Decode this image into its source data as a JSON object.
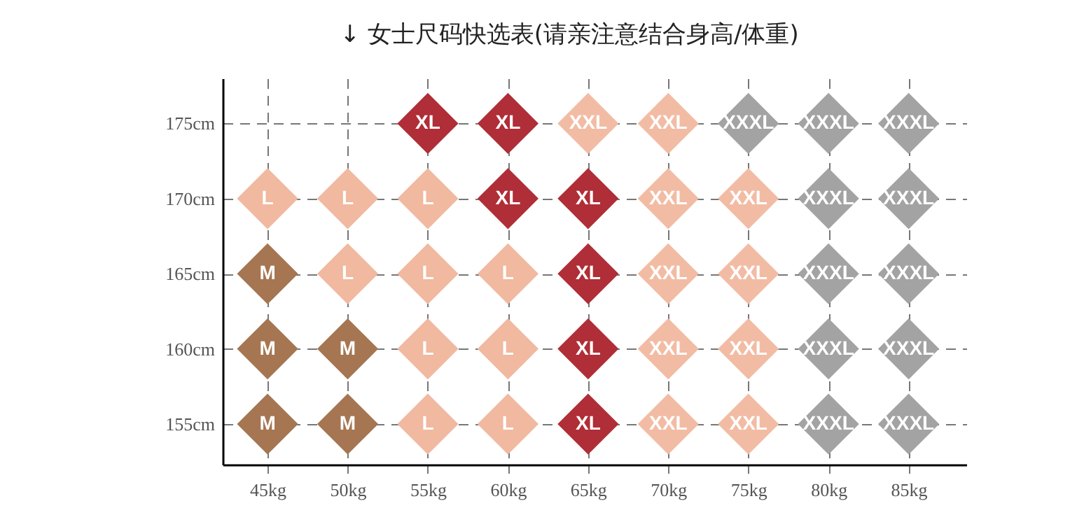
{
  "chart_data": {
    "type": "scatter",
    "title": "↓ 女士尺码快选表(请亲注意结合身高/体重)",
    "xlim": [
      42.2,
      88.6
    ],
    "ylim": [
      152.3,
      178
    ],
    "xticks": [
      {
        "value": 45,
        "label": "45kg"
      },
      {
        "value": 50,
        "label": "50kg"
      },
      {
        "value": 55,
        "label": "55kg"
      },
      {
        "value": 60,
        "label": "60kg"
      },
      {
        "value": 65,
        "label": "65kg"
      },
      {
        "value": 70,
        "label": "70kg"
      },
      {
        "value": 75,
        "label": "75kg"
      },
      {
        "value": 80,
        "label": "80kg"
      },
      {
        "value": 85,
        "label": "85kg"
      }
    ],
    "yticks": [
      {
        "value": 155,
        "label": "155cm"
      },
      {
        "value": 160,
        "label": "160cm"
      },
      {
        "value": 165,
        "label": "165cm"
      },
      {
        "value": 170,
        "label": "170cm"
      },
      {
        "value": 175,
        "label": "175cm"
      }
    ],
    "grid": true,
    "legend": false,
    "marker": "diamond",
    "series": [
      {
        "name": "M",
        "color": "#a57651",
        "x": [
          45,
          45,
          50,
          45,
          50
        ],
        "values": [
          165,
          160,
          160,
          155,
          155
        ]
      },
      {
        "name": "L",
        "color": "#f0b9a0",
        "x": [
          45,
          50,
          55,
          50,
          55,
          60,
          55,
          60,
          55,
          60
        ],
        "values": [
          170,
          170,
          170,
          165,
          165,
          165,
          160,
          160,
          155,
          155
        ]
      },
      {
        "name": "XL",
        "color": "#b02e37",
        "x": [
          55,
          60,
          60,
          65,
          65,
          65,
          65
        ],
        "values": [
          175,
          175,
          170,
          170,
          165,
          160,
          155
        ]
      },
      {
        "name": "XXL",
        "color": "#f2bca4",
        "x": [
          65,
          70,
          70,
          75,
          70,
          75,
          70,
          75,
          70,
          75
        ],
        "values": [
          175,
          175,
          170,
          170,
          165,
          165,
          160,
          160,
          155,
          155
        ]
      },
      {
        "name": "XXXL",
        "color": "#a3a3a3",
        "x": [
          75,
          80,
          85,
          80,
          85,
          80,
          85,
          80,
          85,
          80,
          85
        ],
        "values": [
          175,
          175,
          175,
          170,
          170,
          165,
          165,
          160,
          160,
          155,
          155
        ]
      }
    ]
  }
}
